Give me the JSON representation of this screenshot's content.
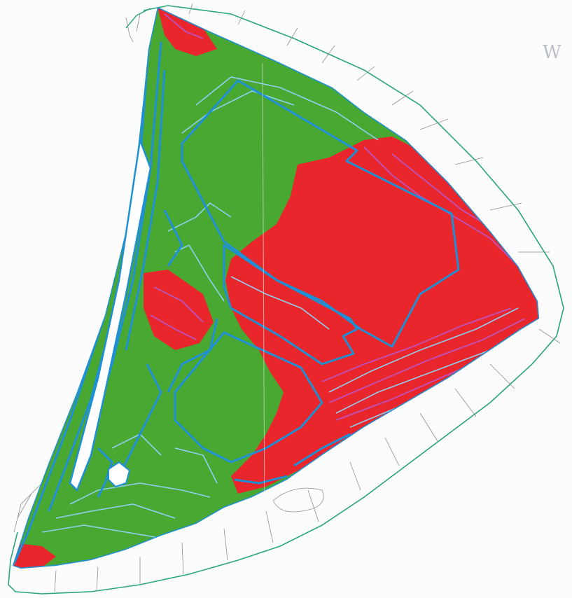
{
  "compass": {
    "label": "W",
    "color": "#b9bec8"
  },
  "colors": {
    "zone_red": "#e8262b",
    "zone_green": "#49a832",
    "contour_blue": "#1f8fd6",
    "contour_light": "#8fd0f2",
    "contour_magenta": "#c24fb2",
    "outline_green": "#2aa57a",
    "thin_lines": "#8a8f96"
  },
  "legend_semantics": {
    "zone_types": [
      "red-zone",
      "green-zone"
    ]
  }
}
